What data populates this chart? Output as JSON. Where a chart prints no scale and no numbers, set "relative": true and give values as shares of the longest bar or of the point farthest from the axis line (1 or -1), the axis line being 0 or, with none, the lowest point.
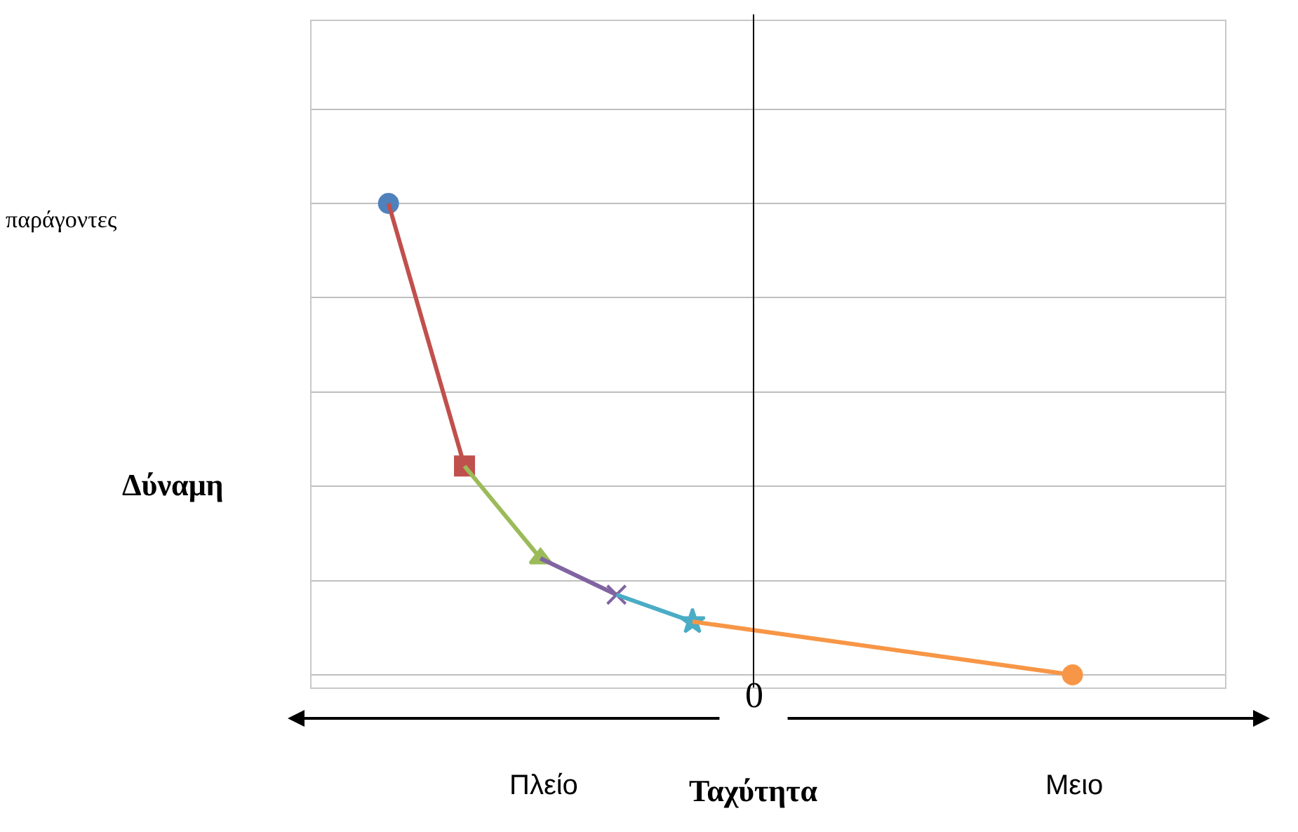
{
  "chart_data": {
    "type": "line",
    "relative": true,
    "xlabel": "Ταχύτητα",
    "ylabel": "Δύναμη",
    "annotations": [
      "παράγοντες",
      "Πλείο",
      "Μειο",
      "0"
    ],
    "categories": [
      null,
      null,
      null,
      null,
      null,
      null,
      null,
      null,
      null,
      null
    ],
    "grid": "y",
    "line_style": "solid",
    "series": [
      {
        "color": "#4f81bd",
        "values": [
          1.0,
          null,
          null,
          null,
          null,
          null,
          null,
          null,
          null,
          null
        ],
        "marker": "circle"
      },
      {
        "color": "#c0504d",
        "values": [
          1.0,
          0.443,
          null,
          null,
          null,
          null,
          null,
          null,
          null,
          null
        ],
        "marker": "square"
      },
      {
        "color": "#9bbb59",
        "values": [
          null,
          0.443,
          0.247,
          null,
          null,
          null,
          null,
          null,
          null,
          null
        ],
        "marker": "triangle"
      },
      {
        "color": "#8064a2",
        "values": [
          null,
          null,
          0.247,
          0.17,
          null,
          null,
          null,
          null,
          null,
          null
        ],
        "marker": "cross"
      },
      {
        "color": "#4bacc6",
        "values": [
          null,
          null,
          null,
          0.17,
          0.113,
          null,
          null,
          null,
          null,
          null
        ],
        "marker": "star"
      },
      {
        "color": "#f79646",
        "values": [
          null,
          null,
          null,
          null,
          0.113,
          null,
          null,
          null,
          null,
          0.0
        ],
        "marker": "circle"
      }
    ]
  }
}
